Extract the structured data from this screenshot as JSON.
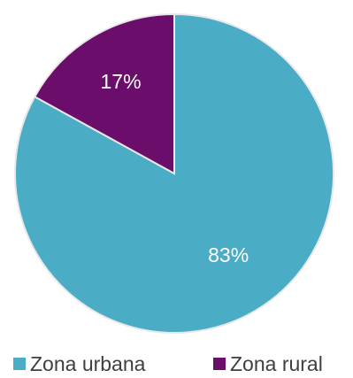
{
  "chart_data": {
    "type": "pie",
    "title": "",
    "slices": [
      {
        "label": "Zona urbana",
        "value": 83,
        "display": "83%",
        "color": "#4bacc6"
      },
      {
        "label": "Zona rural",
        "value": 17,
        "display": "17%",
        "color": "#6b0d6b"
      }
    ],
    "legend": {
      "position": "bottom",
      "items": [
        "Zona urbana",
        "Zona rural"
      ]
    }
  }
}
